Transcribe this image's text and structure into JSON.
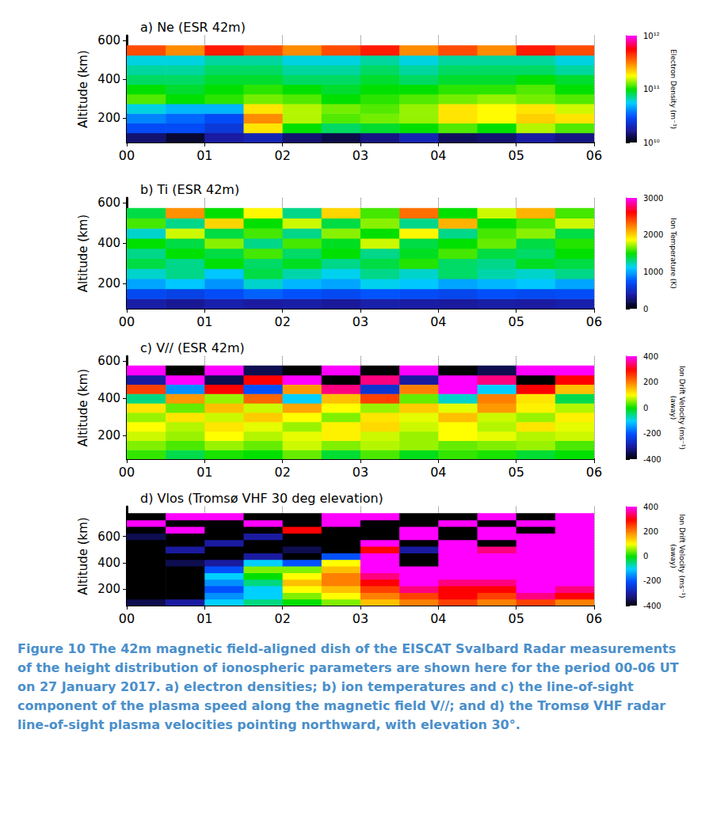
{
  "chart_data": [
    {
      "type": "heatmap",
      "title": "a) Ne (ESR 42m)",
      "y_label": "Altitude (km)",
      "x": [
        0.25,
        0.75,
        1.25,
        1.75,
        2.25,
        2.75,
        3.25,
        3.75,
        4.25,
        4.75,
        5.25,
        5.75
      ],
      "y": [
        100,
        150,
        200,
        250,
        300,
        350,
        400,
        450,
        500,
        550
      ],
      "cells": [
        [
          15000000000.0,
          12000000000.0,
          18000000000.0,
          20000000000.0,
          15000000000.0,
          13000000000.0,
          16000000000.0,
          20000000000.0,
          14000000000.0,
          15000000000.0,
          18000000000.0,
          16000000000.0
        ],
        [
          30000000000.0,
          30000000000.0,
          25000000000.0,
          200000000000.0,
          100000000000.0,
          80000000000.0,
          90000000000.0,
          100000000000.0,
          120000000000.0,
          100000000000.0,
          150000000000.0,
          120000000000.0
        ],
        [
          40000000000.0,
          35000000000.0,
          30000000000.0,
          300000000000.0,
          150000000000.0,
          120000000000.0,
          130000000000.0,
          140000000000.0,
          200000000000.0,
          180000000000.0,
          220000000000.0,
          200000000000.0
        ],
        [
          60000000000.0,
          50000000000.0,
          50000000000.0,
          200000000000.0,
          150000000000.0,
          130000000000.0,
          120000000000.0,
          140000000000.0,
          200000000000.0,
          180000000000.0,
          200000000000.0,
          160000000000.0
        ],
        [
          120000000000.0,
          100000000000.0,
          110000000000.0,
          130000000000.0,
          120000000000.0,
          100000000000.0,
          110000000000.0,
          120000000000.0,
          130000000000.0,
          140000000000.0,
          130000000000.0,
          120000000000.0
        ],
        [
          100000000000.0,
          90000000000.0,
          100000000000.0,
          110000000000.0,
          100000000000.0,
          90000000000.0,
          100000000000.0,
          100000000000.0,
          110000000000.0,
          110000000000.0,
          120000000000.0,
          100000000000.0
        ],
        [
          80000000000.0,
          80000000000.0,
          90000000000.0,
          90000000000.0,
          80000000000.0,
          80000000000.0,
          90000000000.0,
          80000000000.0,
          90000000000.0,
          90000000000.0,
          100000000000.0,
          90000000000.0
        ],
        [
          70000000000.0,
          70000000000.0,
          80000000000.0,
          80000000000.0,
          70000000000.0,
          70000000000.0,
          80000000000.0,
          70000000000.0,
          80000000000.0,
          80000000000.0,
          80000000000.0,
          70000000000.0
        ],
        [
          60000000000.0,
          60000000000.0,
          70000000000.0,
          70000000000.0,
          60000000000.0,
          60000000000.0,
          70000000000.0,
          60000000000.0,
          70000000000.0,
          70000000000.0,
          70000000000.0,
          60000000000.0
        ],
        [
          400000000000.0,
          300000000000.0,
          500000000000.0,
          400000000000.0,
          300000000000.0,
          400000000000.0,
          500000000000.0,
          300000000000.0,
          400000000000.0,
          300000000000.0,
          500000000000.0,
          400000000000.0
        ]
      ],
      "xlim": [
        0,
        6
      ],
      "xticks": [
        {
          "value": 0,
          "label": "00"
        },
        {
          "value": 1,
          "label": "01"
        },
        {
          "value": 2,
          "label": "02"
        },
        {
          "value": 3,
          "label": "03"
        },
        {
          "value": 4,
          "label": "04"
        },
        {
          "value": 5,
          "label": "05"
        },
        {
          "value": 6,
          "label": "06"
        }
      ],
      "ylim": [
        75,
        625
      ],
      "yticks": [
        200,
        400,
        600
      ],
      "grid": true,
      "colorbar": {
        "range": [
          10000000000.0,
          1000000000000.0
        ],
        "log": true,
        "ticks": [
          {
            "value": 10000000000.0,
            "label": "10¹⁰"
          },
          {
            "value": 100000000000.0,
            "label": "10¹¹"
          },
          {
            "value": 1000000000000.0,
            "label": "10¹²"
          }
        ],
        "label": "Electron Density (m⁻³)"
      }
    },
    {
      "type": "heatmap",
      "title": "b) Ti (ESR 42m)",
      "y_label": "Altitude (km)",
      "x": [
        0.25,
        0.75,
        1.25,
        1.75,
        2.25,
        2.75,
        3.25,
        3.75,
        4.25,
        4.75,
        5.25,
        5.75
      ],
      "y": [
        100,
        150,
        200,
        250,
        300,
        350,
        400,
        450,
        500,
        550
      ],
      "cells": [
        [
          400,
          350,
          420,
          380,
          400,
          360,
          410,
          390,
          370,
          400,
          380,
          420
        ],
        [
          700,
          650,
          720,
          800,
          750,
          700,
          760,
          720,
          680,
          740,
          700,
          720
        ],
        [
          1000,
          1100,
          950,
          1200,
          1050,
          1000,
          1150,
          1100,
          1000,
          1050,
          1100,
          1000
        ],
        [
          1200,
          1300,
          1100,
          1400,
          1250,
          1150,
          1300,
          1200,
          1350,
          1250,
          1200,
          1300
        ],
        [
          1400,
          1300,
          1500,
          1350,
          1450,
          1300,
          1400,
          1550,
          1350,
          1300,
          1450,
          1400
        ],
        [
          1300,
          1500,
          1400,
          1600,
          1350,
          1500,
          1300,
          1450,
          1600,
          1400,
          1350,
          1500
        ],
        [
          1500,
          1400,
          1700,
          1300,
          1600,
          1450,
          1800,
          1400,
          1500,
          1650,
          1400,
          1550
        ],
        [
          1200,
          1800,
          1400,
          1600,
          1300,
          1700,
          1500,
          1900,
          1300,
          1600,
          1700,
          1400
        ],
        [
          1600,
          1300,
          2000,
          1500,
          1800,
          1400,
          1700,
          1300,
          2100,
          1500,
          1600,
          1800
        ],
        [
          1400,
          2200,
          1500,
          1900,
          1300,
          2000,
          1600,
          2300,
          1500,
          1800,
          2100,
          1600
        ]
      ],
      "xlim": [
        0,
        6
      ],
      "xticks": [
        {
          "value": 0,
          "label": "00"
        },
        {
          "value": 1,
          "label": "01"
        },
        {
          "value": 2,
          "label": "02"
        },
        {
          "value": 3,
          "label": "03"
        },
        {
          "value": 4,
          "label": "04"
        },
        {
          "value": 5,
          "label": "05"
        },
        {
          "value": 6,
          "label": "06"
        }
      ],
      "ylim": [
        75,
        625
      ],
      "yticks": [
        200,
        400,
        600
      ],
      "grid": true,
      "colorbar": {
        "range": [
          0,
          3000
        ],
        "ticks": [
          0,
          1000,
          2000,
          3000
        ],
        "label": "Ion Temperature (K)"
      }
    },
    {
      "type": "heatmap",
      "title": "c) V// (ESR 42m)",
      "y_label": "Altitude (km)",
      "x": [
        0.25,
        0.75,
        1.25,
        1.75,
        2.25,
        2.75,
        3.25,
        3.75,
        4.25,
        4.75,
        5.25,
        5.75
      ],
      "y": [
        100,
        150,
        200,
        250,
        300,
        350,
        400,
        450,
        500,
        550
      ],
      "cells": [
        [
          20,
          -30,
          10,
          0,
          40,
          -20,
          30,
          -10,
          20,
          10,
          -20,
          0
        ],
        [
          50,
          30,
          60,
          40,
          80,
          50,
          70,
          60,
          40,
          50,
          60,
          30
        ],
        [
          80,
          60,
          100,
          70,
          90,
          110,
          80,
          60,
          100,
          90,
          70,
          80
        ],
        [
          100,
          70,
          120,
          90,
          60,
          110,
          130,
          80,
          100,
          70,
          120,
          90
        ],
        [
          60,
          120,
          80,
          140,
          100,
          50,
          120,
          90,
          150,
          80,
          60,
          110
        ],
        [
          120,
          40,
          150,
          80,
          170,
          100,
          60,
          140,
          90,
          180,
          110,
          70
        ],
        [
          -50,
          180,
          60,
          220,
          -100,
          150,
          250,
          40,
          -80,
          200,
          120,
          -30
        ],
        [
          250,
          -150,
          300,
          -200,
          180,
          350,
          -250,
          200,
          400,
          -100,
          300,
          150
        ],
        [
          -300,
          400,
          -350,
          300,
          400,
          -400,
          350,
          -300,
          400,
          350,
          -400,
          300
        ],
        [
          400,
          -400,
          400,
          -350,
          -400,
          400,
          -400,
          400,
          -400,
          -350,
          400,
          400
        ]
      ],
      "xlim": [
        0,
        6
      ],
      "xticks": [
        {
          "value": 0,
          "label": "00"
        },
        {
          "value": 1,
          "label": "01"
        },
        {
          "value": 2,
          "label": "02"
        },
        {
          "value": 3,
          "label": "03"
        },
        {
          "value": 4,
          "label": "04"
        },
        {
          "value": 5,
          "label": "05"
        },
        {
          "value": 6,
          "label": "06"
        }
      ],
      "ylim": [
        75,
        625
      ],
      "yticks": [
        200,
        400,
        600
      ],
      "grid": true,
      "colorbar": {
        "range": [
          -400,
          400
        ],
        "ticks": [
          -400,
          -200,
          0,
          200,
          400
        ],
        "label": "Ion Drift Velocity (ms⁻¹)",
        "sublabel": "(away)"
      }
    },
    {
      "type": "heatmap",
      "title": "d) Vlos (Tromsø VHF 30 deg elevation)",
      "y_label": "Altitude (km)",
      "x": [
        0.25,
        0.75,
        1.25,
        1.75,
        2.25,
        2.75,
        3.25,
        3.75,
        4.25,
        4.75,
        5.25,
        5.75
      ],
      "y": [
        100,
        150,
        200,
        250,
        300,
        350,
        400,
        450,
        500,
        550,
        600,
        650,
        700,
        750
      ],
      "cells": [
        [
          -350,
          -300,
          -100,
          -50,
          0,
          50,
          150,
          200,
          250,
          200,
          250,
          200
        ],
        [
          -400,
          -400,
          -150,
          -100,
          50,
          100,
          200,
          250,
          300,
          250,
          350,
          300
        ],
        [
          -400,
          -400,
          -200,
          -100,
          100,
          150,
          250,
          350,
          300,
          300,
          400,
          350
        ],
        [
          -400,
          -400,
          -150,
          -50,
          150,
          200,
          300,
          400,
          350,
          350,
          400,
          400
        ],
        [
          -400,
          -400,
          -100,
          0,
          100,
          200,
          350,
          400,
          400,
          400,
          400,
          400
        ],
        [
          -400,
          -400,
          -200,
          50,
          50,
          150,
          400,
          400,
          400,
          400,
          400,
          400
        ],
        [
          -400,
          -350,
          -300,
          -100,
          -200,
          100,
          400,
          -400,
          400,
          400,
          400,
          400
        ],
        [
          -400,
          -400,
          -400,
          -300,
          -400,
          -200,
          400,
          -400,
          400,
          400,
          400,
          400
        ],
        [
          -400,
          -300,
          -400,
          -400,
          -350,
          -400,
          300,
          -300,
          400,
          350,
          400,
          400
        ],
        [
          -400,
          -400,
          -300,
          -400,
          -400,
          -400,
          400,
          -400,
          400,
          -400,
          400,
          400
        ],
        [
          -350,
          -400,
          -400,
          -300,
          -400,
          -400,
          -400,
          400,
          -400,
          400,
          400,
          400
        ],
        [
          -400,
          400,
          -400,
          -400,
          300,
          -400,
          -400,
          400,
          -400,
          400,
          -400,
          400
        ],
        [
          400,
          -400,
          -400,
          400,
          -400,
          400,
          -400,
          -400,
          400,
          -400,
          400,
          400
        ],
        [
          -400,
          400,
          400,
          -400,
          -400,
          400,
          400,
          -400,
          -400,
          400,
          -400,
          400
        ]
      ],
      "xlim": [
        0,
        6
      ],
      "xticks": [
        {
          "value": 0,
          "label": "00"
        },
        {
          "value": 1,
          "label": "01"
        },
        {
          "value": 2,
          "label": "02"
        },
        {
          "value": 3,
          "label": "03"
        },
        {
          "value": 4,
          "label": "04"
        },
        {
          "value": 5,
          "label": "05"
        },
        {
          "value": 6,
          "label": "06"
        }
      ],
      "ylim": [
        75,
        825
      ],
      "yticks": [
        200,
        400,
        600
      ],
      "grid": true,
      "colorbar": {
        "range": [
          -400,
          400
        ],
        "ticks": [
          -400,
          -200,
          0,
          200,
          400
        ],
        "label": "Ion Drift Velocity (ms⁻¹)",
        "sublabel": "(away)"
      }
    }
  ],
  "caption": "Figure 10 The 42m magnetic field-aligned dish of the EISCAT Svalbard Radar measurements of the height distribution of ionospheric parameters are shown here for the period 00-06 UT on 27 January 2017. a) electron densities; b) ion temperatures and c) the line-of-sight component of the plasma speed along the magnetic field V//; and d) the Tromsø VHF radar line-of-sight plasma velocities pointing northward, with elevation 30°."
}
